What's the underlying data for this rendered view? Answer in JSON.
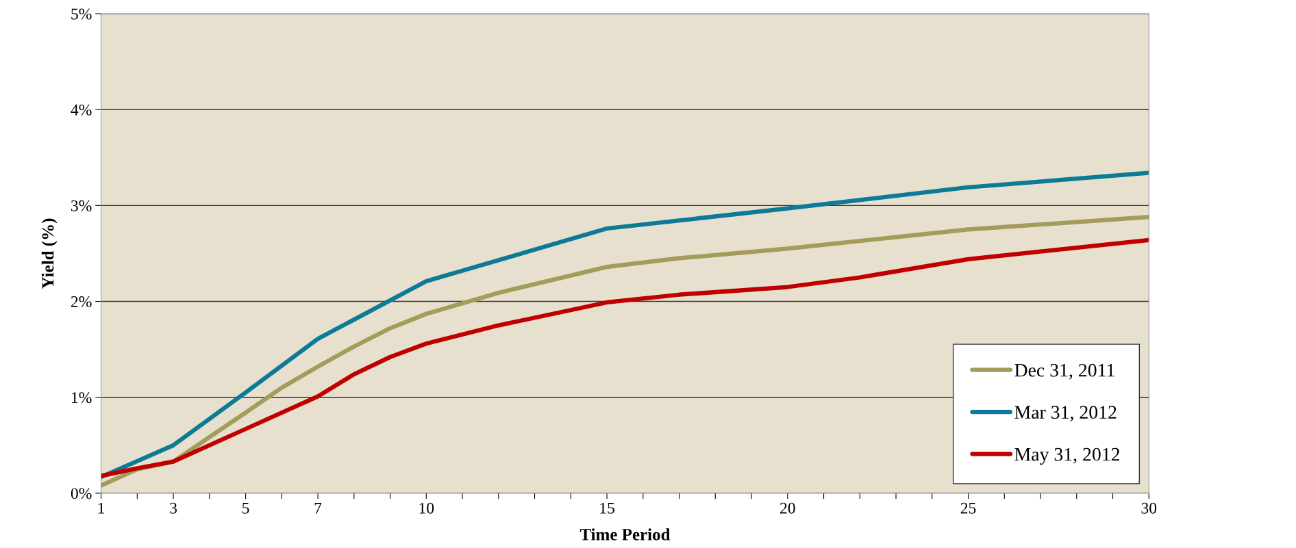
{
  "chart_data": {
    "type": "line",
    "xlabel": "Time Period",
    "ylabel": "Yield (%)",
    "xlim": [
      1,
      30
    ],
    "ylim": [
      0,
      5
    ],
    "xticks": [
      1,
      {
        "value": 2,
        "label": null
      },
      3,
      {
        "value": 4,
        "label": null
      },
      5,
      {
        "value": 6,
        "label": null
      },
      7,
      {
        "value": 8,
        "label": null
      },
      {
        "value": 9,
        "label": null
      },
      10,
      {
        "value": 11,
        "label": null
      },
      {
        "value": 12,
        "label": null
      },
      {
        "value": 13,
        "label": null
      },
      {
        "value": 14,
        "label": null
      },
      15,
      {
        "value": 16,
        "label": null
      },
      {
        "value": 17,
        "label": null
      },
      {
        "value": 18,
        "label": null
      },
      {
        "value": 19,
        "label": null
      },
      20,
      {
        "value": 21,
        "label": null
      },
      {
        "value": 22,
        "label": null
      },
      {
        "value": 23,
        "label": null
      },
      {
        "value": 24,
        "label": null
      },
      25,
      {
        "value": 26,
        "label": null
      },
      {
        "value": 27,
        "label": null
      },
      {
        "value": 28,
        "label": null
      },
      {
        "value": 29,
        "label": null
      },
      30
    ],
    "yticks": [
      {
        "value": 0,
        "label": "0%"
      },
      {
        "value": 1,
        "label": "1%"
      },
      {
        "value": 2,
        "label": "2%"
      },
      {
        "value": 3,
        "label": "3%"
      },
      {
        "value": 4,
        "label": "4%"
      },
      {
        "value": 5,
        "label": "5%"
      }
    ],
    "grid": "y",
    "legend": "bottom right",
    "marker": "none",
    "line_style": "solid",
    "series": [
      {
        "name": "Dec 31, 2011",
        "color": "#a39c5a",
        "x": [
          1,
          2,
          3,
          5,
          6,
          7,
          8,
          9,
          10,
          12,
          15,
          17,
          20,
          25,
          30
        ],
        "values": [
          0.08,
          0.25,
          0.33,
          0.84,
          1.1,
          1.32,
          1.53,
          1.72,
          1.87,
          2.09,
          2.36,
          2.45,
          2.55,
          2.75,
          2.88
        ]
      },
      {
        "name": "Mar 31, 2012",
        "color": "#0e7b96",
        "x": [
          1,
          3,
          5,
          7,
          10,
          15,
          20,
          25,
          30
        ],
        "values": [
          0.17,
          0.5,
          1.05,
          1.61,
          2.21,
          2.76,
          2.97,
          3.19,
          3.34
        ]
      },
      {
        "name": "May 31, 2012",
        "color": "#c00000",
        "x": [
          1,
          2,
          3,
          5,
          7,
          8,
          9,
          10,
          12,
          15,
          17,
          20,
          22,
          25,
          30
        ],
        "values": [
          0.18,
          0.26,
          0.33,
          0.67,
          1.01,
          1.24,
          1.42,
          1.56,
          1.75,
          1.99,
          2.07,
          2.15,
          2.25,
          2.44,
          2.64
        ]
      }
    ]
  }
}
